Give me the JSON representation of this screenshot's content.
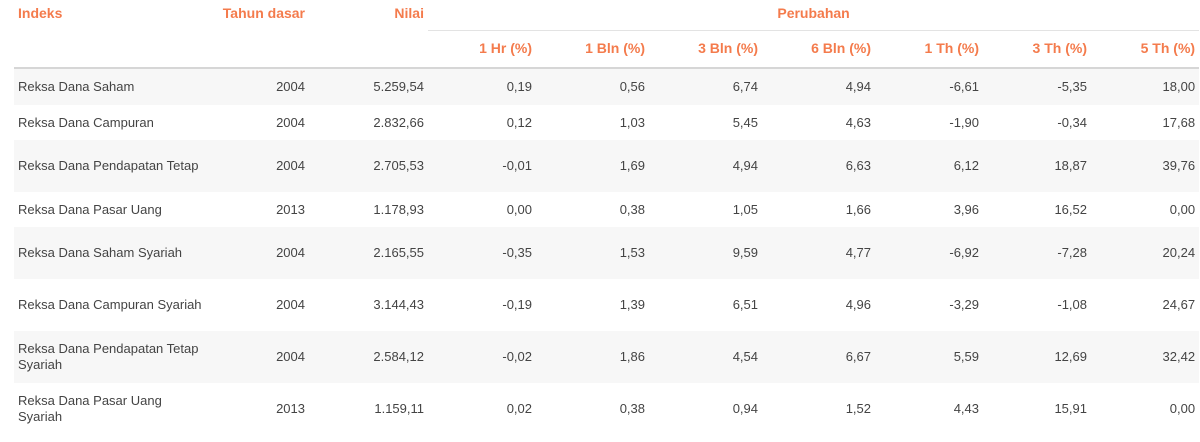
{
  "table": {
    "headers": {
      "indeks": "Indeks",
      "tahun_dasar": "Tahun dasar",
      "nilai": "Nilai",
      "perubahan": "Perubahan",
      "periods": [
        "1 Hr (%)",
        "1 Bln (%)",
        "3 Bln (%)",
        "6 Bln (%)",
        "1 Th (%)",
        "3 Th (%)",
        "5 Th (%)"
      ]
    },
    "rows": [
      {
        "name": "Reksa Dana Saham",
        "year": "2004",
        "value": "5.259,54",
        "changes": [
          "0,19",
          "0,56",
          "6,74",
          "4,94",
          "-6,61",
          "-5,35",
          "18,00"
        ]
      },
      {
        "name": "Reksa Dana Campuran",
        "year": "2004",
        "value": "2.832,66",
        "changes": [
          "0,12",
          "1,03",
          "5,45",
          "4,63",
          "-1,90",
          "-0,34",
          "17,68"
        ]
      },
      {
        "name": "Reksa Dana Pendapatan Tetap",
        "year": "2004",
        "value": "2.705,53",
        "changes": [
          "-0,01",
          "1,69",
          "4,94",
          "6,63",
          "6,12",
          "18,87",
          "39,76"
        ]
      },
      {
        "name": "Reksa Dana Pasar Uang",
        "year": "2013",
        "value": "1.178,93",
        "changes": [
          "0,00",
          "0,38",
          "1,05",
          "1,66",
          "3,96",
          "16,52",
          "0,00"
        ]
      },
      {
        "name": "Reksa Dana Saham Syariah",
        "year": "2004",
        "value": "2.165,55",
        "changes": [
          "-0,35",
          "1,53",
          "9,59",
          "4,77",
          "-6,92",
          "-7,28",
          "20,24"
        ]
      },
      {
        "name": "Reksa Dana Campuran Syariah",
        "year": "2004",
        "value": "3.144,43",
        "changes": [
          "-0,19",
          "1,39",
          "6,51",
          "4,96",
          "-3,29",
          "-1,08",
          "24,67"
        ]
      },
      {
        "name": "Reksa Dana Pendapatan Tetap Syariah",
        "year": "2004",
        "value": "2.584,12",
        "changes": [
          "-0,02",
          "1,86",
          "4,54",
          "6,67",
          "5,59",
          "12,69",
          "32,42"
        ]
      },
      {
        "name": "Reksa Dana Pasar Uang Syariah",
        "year": "2013",
        "value": "1.159,11",
        "changes": [
          "0,02",
          "0,38",
          "0,94",
          "1,52",
          "4,43",
          "15,91",
          "0,00"
        ]
      }
    ]
  },
  "colors": {
    "header_text": "#f47b4c",
    "body_text": "#444444",
    "stripe": "#f7f7f7",
    "rule": "#d6d6d6"
  }
}
